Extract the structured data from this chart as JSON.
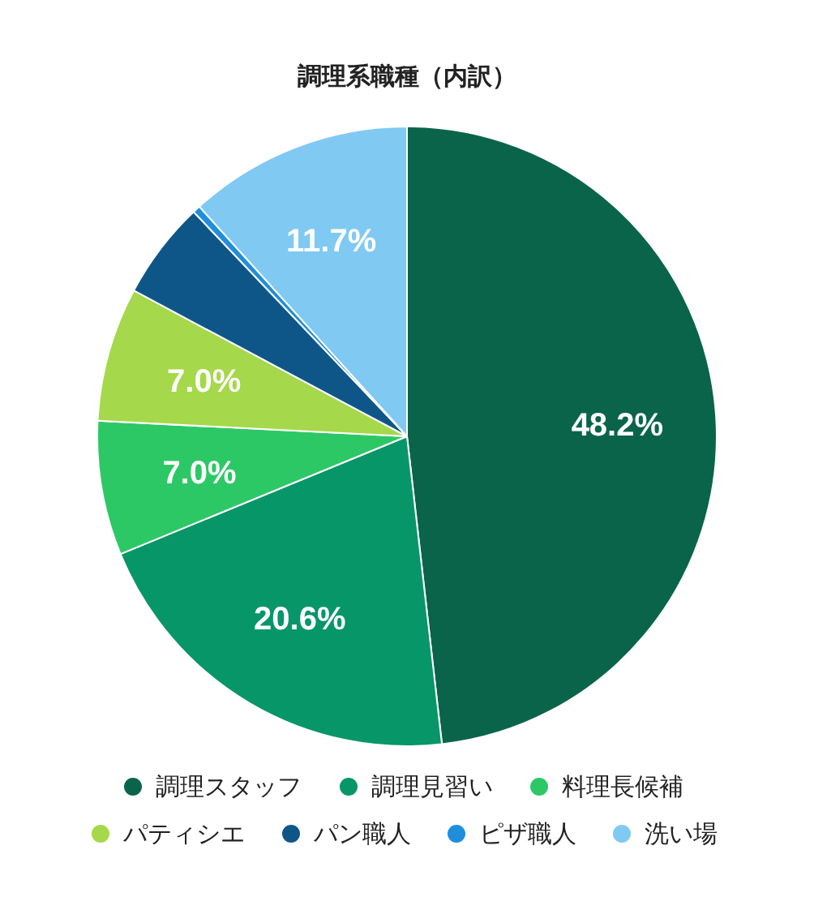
{
  "chart_data": {
    "type": "pie",
    "title": "調理系職種（内訳）",
    "categories": [
      "調理スタッフ",
      "調理見習い",
      "料理長候補",
      "パティシエ",
      "パン職人",
      "ピザ職人",
      "洗い場"
    ],
    "values": [
      48.2,
      20.6,
      7.0,
      7.0,
      5.1,
      0.4,
      11.7
    ],
    "value_labels": [
      "48.2%",
      "20.6%",
      "7.0%",
      "7.0%",
      null,
      null,
      "11.7%"
    ],
    "colors": [
      "#0a6449",
      "#079668",
      "#2dc866",
      "#a5d84a",
      "#0f5688",
      "#1f8fdd",
      "#80c9f3"
    ],
    "legend": "bottom"
  }
}
